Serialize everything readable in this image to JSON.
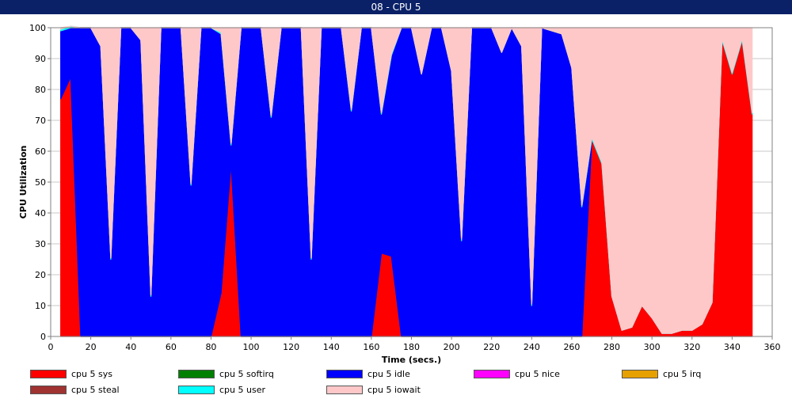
{
  "window": {
    "title": "08 - CPU 5"
  },
  "chart_data": {
    "type": "area",
    "stacked": true,
    "title": "",
    "xlabel": "Time (secs.)",
    "ylabel": "CPU Utilization",
    "xlim": [
      0,
      360
    ],
    "ylim": [
      0,
      100
    ],
    "x_ticks": [
      0,
      20,
      40,
      60,
      80,
      100,
      120,
      140,
      160,
      180,
      200,
      220,
      240,
      260,
      280,
      300,
      320,
      340,
      360
    ],
    "y_ticks": [
      0,
      10,
      20,
      30,
      40,
      50,
      60,
      70,
      80,
      90,
      100
    ],
    "grid": true,
    "legend_position": "bottom",
    "x": [
      5,
      10,
      15,
      20,
      25,
      30,
      35,
      40,
      45,
      50,
      55,
      60,
      65,
      70,
      75,
      80,
      85,
      90,
      95,
      100,
      105,
      110,
      115,
      120,
      125,
      130,
      135,
      140,
      145,
      150,
      155,
      160,
      165,
      170,
      175,
      180,
      185,
      190,
      195,
      200,
      205,
      210,
      215,
      220,
      225,
      230,
      235,
      240,
      245,
      250,
      255,
      260,
      265,
      270,
      275,
      280,
      285,
      290,
      295,
      300,
      305,
      310,
      315,
      320,
      325,
      330,
      335,
      340,
      345,
      350
    ],
    "series": [
      {
        "name": "cpu 5 sys",
        "color": "#ff0000",
        "values": [
          77,
          84,
          0,
          0,
          0,
          0,
          0,
          0,
          0,
          0,
          0,
          0,
          0,
          0,
          0,
          0,
          14,
          56,
          0,
          0,
          0,
          0,
          0,
          0,
          0,
          0,
          0,
          0,
          0,
          0,
          0,
          0,
          27,
          26,
          0,
          0,
          0,
          0,
          0,
          0,
          0,
          0,
          0,
          0,
          0,
          0,
          0,
          0,
          0,
          0,
          0,
          0,
          0,
          64,
          56,
          13,
          2,
          3,
          10,
          6,
          1,
          1,
          2,
          2,
          4,
          11,
          96,
          85,
          96,
          72
        ]
      },
      {
        "name": "cpu 5 softirq",
        "color": "#008000",
        "values": [
          0,
          0,
          0,
          0,
          0,
          0,
          0,
          0,
          0,
          0,
          0,
          0,
          0,
          0,
          0,
          0,
          0,
          0,
          0,
          0,
          0,
          0,
          0,
          0,
          0,
          0,
          0,
          0,
          0,
          0,
          0,
          0,
          0,
          0,
          0,
          0,
          0,
          0,
          0,
          0,
          0,
          0,
          0,
          0,
          0,
          0,
          0,
          0,
          0,
          0,
          0,
          0,
          0,
          0,
          0,
          0,
          0,
          0,
          0,
          0,
          0,
          0,
          0,
          0,
          0,
          0,
          0,
          0,
          0,
          0
        ]
      },
      {
        "name": "cpu 5 idle",
        "color": "#0000ff",
        "values": [
          22,
          16,
          100,
          100,
          94,
          25,
          100,
          100,
          96,
          13,
          100,
          100,
          100,
          49,
          100,
          100,
          84,
          6,
          100,
          100,
          100,
          71,
          100,
          100,
          100,
          25,
          100,
          100,
          100,
          73,
          100,
          100,
          45,
          65,
          100,
          100,
          85,
          100,
          100,
          86,
          31,
          100,
          100,
          100,
          92,
          100,
          94,
          10,
          100,
          99,
          98,
          87,
          42,
          0,
          0,
          0,
          0,
          0,
          0,
          0,
          0,
          0,
          0,
          0,
          0,
          0,
          0,
          0,
          0,
          0
        ]
      },
      {
        "name": "cpu 5 nice",
        "color": "#ff00ff",
        "values": [
          0,
          0,
          0,
          0,
          0,
          0,
          0,
          0,
          0,
          0,
          0,
          0,
          0,
          0,
          0,
          0,
          0,
          0,
          0,
          0,
          0,
          0,
          0,
          0,
          0,
          0,
          0,
          0,
          0,
          0,
          0,
          0,
          0,
          0,
          0,
          0,
          0,
          0,
          0,
          0,
          0,
          0,
          0,
          0,
          0,
          0,
          0,
          0,
          0,
          0,
          0,
          0,
          0,
          0,
          0,
          0,
          0,
          0,
          0,
          0,
          0,
          0,
          0,
          0,
          0,
          0,
          0,
          0,
          0,
          0
        ]
      },
      {
        "name": "cpu 5 irq",
        "color": "#e6a000",
        "values": [
          0,
          0,
          0,
          0,
          0,
          0,
          0,
          0,
          0,
          0,
          0,
          0,
          0,
          0,
          0,
          0,
          0,
          0,
          0,
          0,
          0,
          0,
          0,
          0,
          0,
          0,
          0,
          0,
          0,
          0,
          0,
          0,
          0,
          0,
          0,
          0,
          0,
          0,
          0,
          0,
          0,
          0,
          0,
          0,
          0,
          0,
          0,
          0,
          0,
          0,
          0,
          0,
          0,
          0,
          0,
          0,
          0,
          0,
          0,
          0,
          0,
          0,
          0,
          0,
          0,
          0,
          0,
          0,
          0,
          0
        ]
      },
      {
        "name": "cpu 5 steal",
        "color": "#a03232",
        "values": [
          0,
          0,
          0,
          0,
          0,
          0,
          0,
          0,
          0,
          0,
          0,
          0,
          0,
          0,
          0,
          0,
          0,
          0,
          0,
          0,
          0,
          0,
          0,
          0,
          0,
          0,
          0,
          0,
          0,
          0,
          0,
          0,
          0,
          0,
          0,
          0,
          0,
          0,
          0,
          0,
          0,
          0,
          0,
          0,
          0,
          0,
          0,
          0,
          0,
          0,
          0,
          0,
          0,
          0,
          0,
          0,
          0,
          0,
          0,
          0,
          0,
          0,
          0,
          0,
          0,
          0,
          0,
          0,
          0,
          0
        ]
      },
      {
        "name": "cpu 5 user",
        "color": "#00ffff",
        "values": [
          0.5,
          0.5,
          0,
          0,
          0,
          0.5,
          0,
          0,
          0,
          0.5,
          0,
          0,
          0,
          0.5,
          0,
          0,
          0.5,
          0.5,
          0,
          0,
          0,
          0.5,
          0,
          0,
          0,
          0.5,
          0,
          0,
          0,
          0.5,
          0,
          0,
          0.5,
          0.5,
          0,
          0,
          0,
          0,
          0,
          0,
          0.5,
          0,
          0,
          0,
          0,
          0,
          0,
          0.5,
          0,
          0,
          0,
          0,
          0.5,
          0.5,
          0.5,
          0,
          0,
          0,
          0,
          0,
          0,
          0,
          0,
          0,
          0,
          0,
          0.5,
          0.5,
          0.5,
          0.5
        ]
      },
      {
        "name": "cpu 5 iowait",
        "color": "#ffc8c8",
        "values": [
          0.5,
          0,
          0,
          0,
          6,
          74.5,
          0,
          0,
          4,
          86.5,
          0,
          0,
          0,
          50.5,
          0,
          0,
          1.5,
          37.5,
          0,
          0,
          0,
          28.5,
          0,
          0,
          0,
          74.5,
          0,
          0,
          0,
          26.5,
          0,
          0,
          27.5,
          8.5,
          0,
          0,
          15,
          0,
          0,
          14,
          68.5,
          0,
          0,
          0,
          8,
          0,
          6,
          89.5,
          0,
          1,
          2,
          13,
          57.5,
          35.5,
          43.5,
          87,
          98,
          97,
          90,
          94,
          99,
          99,
          98,
          98,
          96,
          89,
          3.5,
          14.5,
          3.5,
          27.5
        ]
      }
    ]
  }
}
